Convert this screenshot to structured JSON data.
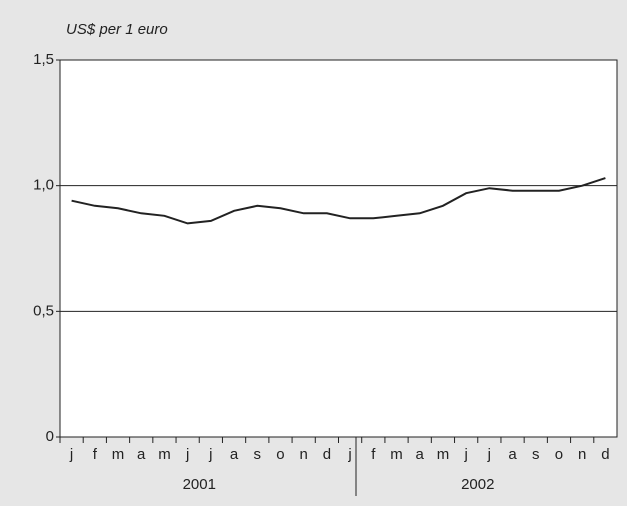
{
  "chart_data": {
    "type": "line",
    "title": "US$ per 1 euro",
    "categories": [
      "j",
      "f",
      "m",
      "a",
      "m",
      "j",
      "j",
      "a",
      "s",
      "o",
      "n",
      "d",
      "j",
      "f",
      "m",
      "a",
      "m",
      "j",
      "j",
      "a",
      "s",
      "o",
      "n",
      "d"
    ],
    "year_labels": [
      "2001",
      "2002"
    ],
    "values": [
      0.94,
      0.92,
      0.91,
      0.89,
      0.88,
      0.85,
      0.86,
      0.9,
      0.92,
      0.91,
      0.89,
      0.89,
      0.87,
      0.87,
      0.88,
      0.89,
      0.92,
      0.97,
      0.99,
      0.98,
      0.98,
      0.98,
      1.0,
      1.03
    ],
    "color": "#222222",
    "ylim": [
      0,
      1.5
    ],
    "yticks": [
      0,
      {
        "value": 0.5,
        "label": "0,5"
      },
      {
        "value": 1.0,
        "label": "1,0"
      },
      {
        "value": 1.5,
        "label": "1,5"
      }
    ],
    "grid": true
  }
}
